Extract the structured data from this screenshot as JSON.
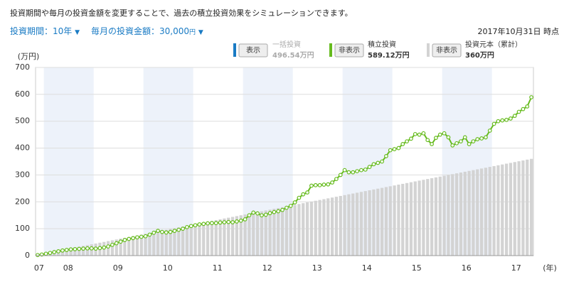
{
  "header": {
    "description": "投資期間や毎月の投資金額を変更することで、過去の積立投資効果をシミュレーションできます。",
    "period": "投資期間：10年",
    "period_arrow": "▼",
    "amount": "毎月の投資金額：30,000",
    "amount_unit": "円",
    "amount_arrow": "▼",
    "as_of": "2017年10月31日 時点"
  },
  "inactive_legend": {
    "button": "表示",
    "name": "一括投資",
    "total": "496.54万円",
    "color": "#1a7bc4"
  },
  "chart_data": {
    "type": "bar-line",
    "y_label": "(万円)",
    "x_label": "(年)",
    "ylim": [
      0,
      700
    ],
    "yticks": [
      0,
      100,
      200,
      300,
      400,
      500,
      600,
      700
    ],
    "grid": true,
    "categories": [
      "07",
      null,
      null,
      null,
      null,
      null,
      null,
      "08",
      null,
      null,
      null,
      null,
      null,
      null,
      null,
      null,
      null,
      null,
      null,
      "09",
      null,
      null,
      null,
      null,
      null,
      null,
      null,
      null,
      null,
      null,
      null,
      "10",
      null,
      null,
      null,
      null,
      null,
      null,
      null,
      null,
      null,
      null,
      null,
      "11",
      null,
      null,
      null,
      null,
      null,
      null,
      null,
      null,
      null,
      null,
      null,
      "12",
      null,
      null,
      null,
      null,
      null,
      null,
      null,
      null,
      null,
      null,
      null,
      "13",
      null,
      null,
      null,
      null,
      null,
      null,
      null,
      null,
      null,
      null,
      null,
      "14",
      null,
      null,
      null,
      null,
      null,
      null,
      null,
      null,
      null,
      null,
      null,
      "15",
      null,
      null,
      null,
      null,
      null,
      null,
      null,
      null,
      null,
      null,
      null,
      "16",
      null,
      null,
      null,
      null,
      null,
      null,
      null,
      null,
      null,
      null,
      null,
      "17",
      null,
      null,
      null,
      null
    ],
    "series": [
      {
        "name": "積立投資",
        "type": "line",
        "color": "#66bb1e",
        "button": "非表示",
        "total": "589.12万円",
        "values": [
          2,
          4,
          7,
          10,
          13,
          16,
          19,
          21,
          23,
          24,
          25,
          26,
          27,
          27,
          26,
          28,
          30,
          34,
          40,
          46,
          52,
          58,
          62,
          65,
          68,
          70,
          72,
          78,
          85,
          92,
          88,
          86,
          88,
          92,
          96,
          100,
          106,
          110,
          113,
          116,
          118,
          120,
          121,
          121,
          123,
          124,
          125,
          124,
          127,
          130,
          135,
          150,
          160,
          157,
          150,
          152,
          158,
          162,
          165,
          170,
          178,
          185,
          198,
          215,
          228,
          235,
          260,
          262,
          262,
          264,
          265,
          272,
          285,
          300,
          318,
          310,
          310,
          314,
          318,
          320,
          330,
          340,
          345,
          350,
          370,
          392,
          396,
          400,
          415,
          425,
          435,
          452,
          450,
          455,
          430,
          415,
          438,
          450,
          455,
          440,
          410,
          418,
          425,
          440,
          415,
          425,
          433,
          436,
          440,
          465,
          490,
          500,
          503,
          505,
          510,
          520,
          535,
          545,
          555,
          589.12
        ]
      },
      {
        "name": "投資元本（累計）",
        "type": "bar",
        "color": "#d3d3d3",
        "button": "非表示",
        "total": "360万円",
        "values": [
          3,
          6,
          9,
          12,
          15,
          18,
          21,
          24,
          27,
          30,
          33,
          36,
          39,
          42,
          45,
          48,
          51,
          54,
          57,
          60,
          63,
          66,
          69,
          72,
          75,
          78,
          81,
          84,
          87,
          90,
          93,
          96,
          99,
          102,
          105,
          108,
          111,
          114,
          117,
          120,
          123,
          126,
          129,
          132,
          135,
          138,
          141,
          144,
          147,
          150,
          153,
          156,
          159,
          162,
          165,
          168,
          171,
          174,
          177,
          180,
          183,
          186,
          189,
          192,
          195,
          198,
          201,
          204,
          207,
          210,
          213,
          216,
          219,
          222,
          225,
          228,
          231,
          234,
          237,
          240,
          243,
          246,
          249,
          252,
          255,
          258,
          261,
          264,
          267,
          270,
          273,
          276,
          279,
          282,
          285,
          288,
          291,
          294,
          297,
          300,
          303,
          306,
          309,
          312,
          315,
          318,
          321,
          324,
          327,
          330,
          333,
          336,
          339,
          342,
          345,
          348,
          351,
          354,
          357,
          360
        ]
      }
    ]
  }
}
